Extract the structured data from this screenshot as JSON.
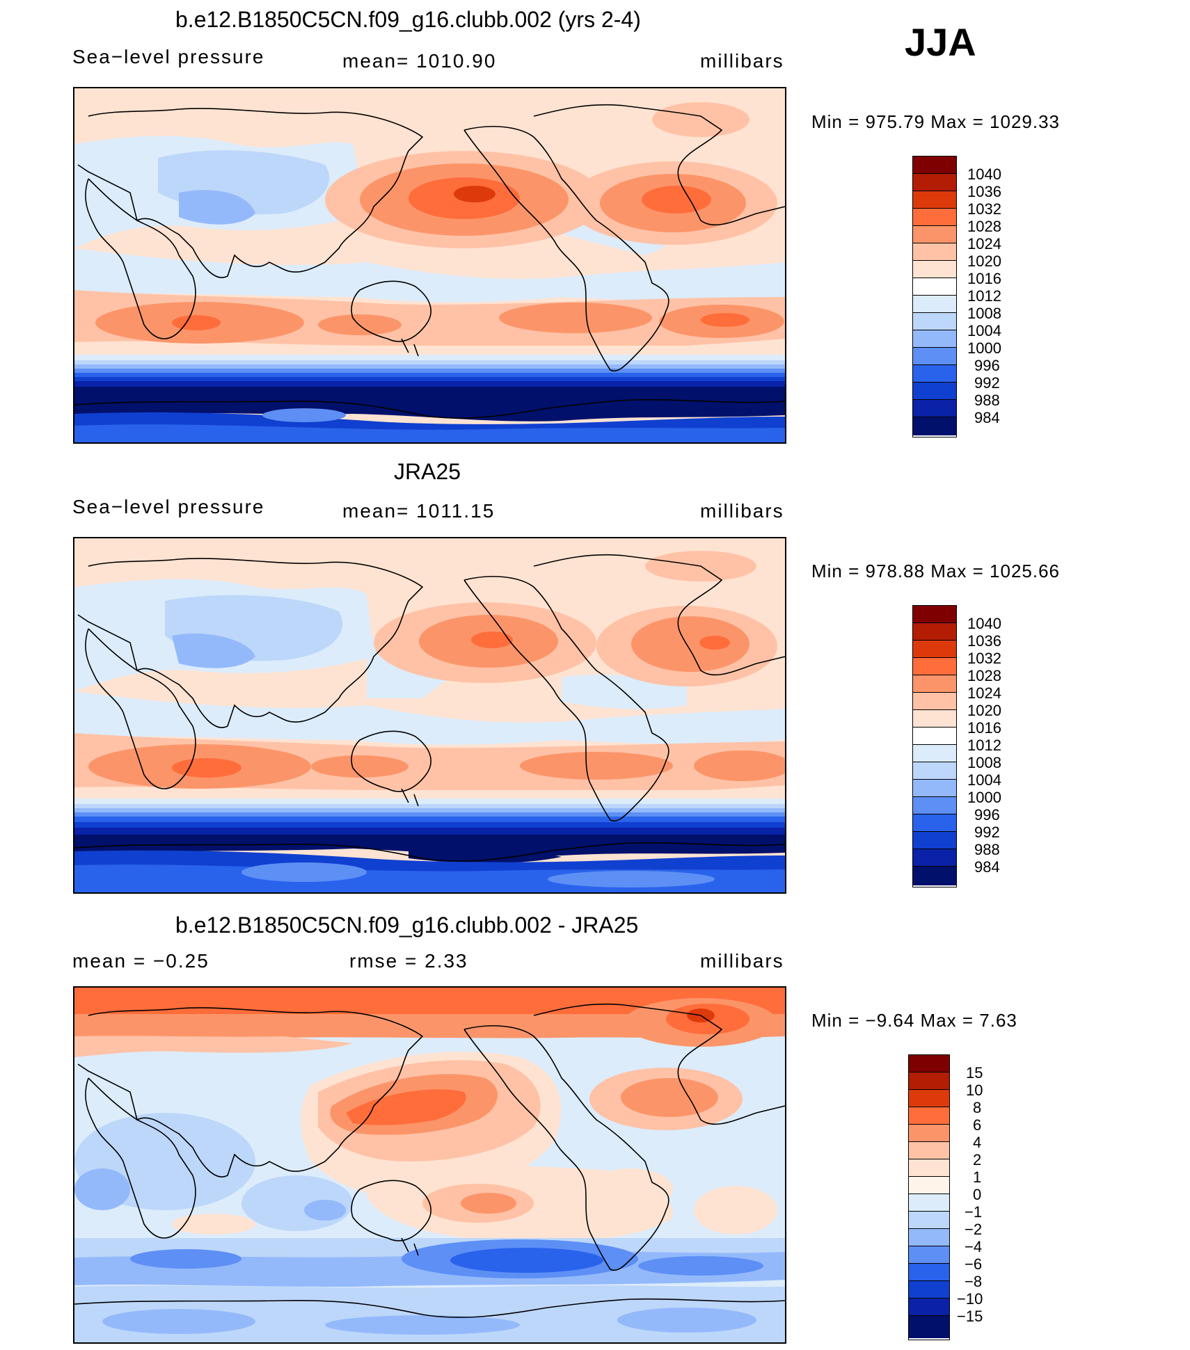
{
  "season": "JJA",
  "panels": [
    {
      "title": "b.e12.B1850C5CN.f09_g16.clubb.002 (yrs 2-4)",
      "left_label": "Sea−level pressure",
      "center_label": "mean=  1010.90",
      "units": "millibars",
      "minmax": "Min  =  975.79  Max  =  1029.33",
      "colorbar_labels": [
        "1040",
        "1036",
        "1032",
        "1028",
        "1024",
        "1020",
        "1016",
        "1012",
        "1008",
        "1004",
        "1000",
        "996",
        "992",
        "988",
        "984"
      ]
    },
    {
      "title": "JRA25",
      "left_label": "Sea−level pressure",
      "center_label": "mean=  1011.15",
      "units": "millibars",
      "minmax": "Min  =  978.88  Max  =  1025.66",
      "colorbar_labels": [
        "1040",
        "1036",
        "1032",
        "1028",
        "1024",
        "1020",
        "1016",
        "1012",
        "1008",
        "1004",
        "1000",
        "996",
        "992",
        "988",
        "984"
      ]
    },
    {
      "title": "b.e12.B1850C5CN.f09_g16.clubb.002 - JRA25",
      "left_label": "mean  =    −0.25",
      "center_label": "rmse  =     2.33",
      "units": "millibars",
      "minmax": "Min  =    −9.64  Max  =      7.63",
      "colorbar_labels": [
        "15",
        "10",
        "8",
        "6",
        "4",
        "2",
        "1",
        "0",
        "−1",
        "−2",
        "−4",
        "−6",
        "−8",
        "−10",
        "−15"
      ]
    }
  ],
  "colors": {
    "scale": [
      "#7f0000",
      "#b31d04",
      "#dd3a0c",
      "#ff6d3b",
      "#fb9569",
      "#ffc2a6",
      "#ffe3d2",
      "#ffffff",
      "#dcecfb",
      "#bdd7fa",
      "#94b9fb",
      "#5d8ff5",
      "#2a63eb",
      "#1040d0",
      "#0a22a8",
      "#00106b"
    ],
    "coast": "#000000"
  }
}
